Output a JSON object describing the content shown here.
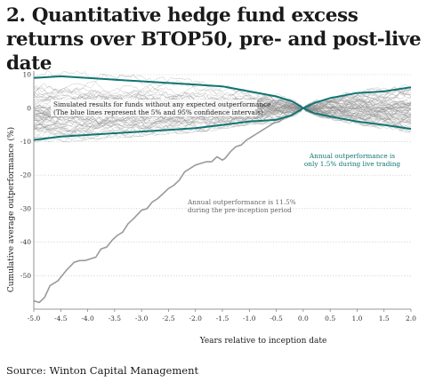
{
  "title": "2. Quantitative hedge fund excess returns over BTOP50, pre- and post-live date",
  "source": "Source: Winton Capital Management",
  "colors": {
    "teal": "#0f7573",
    "grey": "#9a9a9a",
    "sim": "#8a8a8a",
    "axis": "#777777"
  },
  "chart_data": {
    "type": "line",
    "xlabel": "Years relative to inception date",
    "ylabel": "Cumulative average outperformance (%)",
    "xlim": [
      -5.0,
      2.0
    ],
    "ylim": [
      -60,
      10
    ],
    "xticks": [
      "-5.0",
      "-4.5",
      "-4.0",
      "-3.5",
      "-3.0",
      "-2.5",
      "-2.0",
      "-1.5",
      "-1.0",
      "-0.5",
      "0.0",
      "0.5",
      "1.0",
      "1.5",
      "2.0"
    ],
    "yticks": [
      "10",
      "0",
      "-10",
      "-20",
      "-30",
      "-40",
      "-50"
    ],
    "series": [
      {
        "role": "pre-inception",
        "x": [
          -5.0,
          -4.9,
          -4.8,
          -4.7,
          -4.55,
          -4.4,
          -4.25,
          -4.15,
          -4.05,
          -3.95,
          -3.85,
          -3.75,
          -3.65,
          -3.55,
          -3.45,
          -3.35,
          -3.25,
          -3.15,
          -3.0,
          -2.9,
          -2.8,
          -2.7,
          -2.6,
          -2.5,
          -2.4,
          -2.3,
          -2.2,
          -2.1,
          -2.0,
          -1.9,
          -1.8,
          -1.7,
          -1.6,
          -1.5,
          -1.45,
          -1.35,
          -1.25,
          -1.15,
          -1.05,
          -0.95,
          -0.85,
          -0.75,
          -0.65,
          -0.55,
          -0.45,
          -0.35,
          -0.25,
          -0.15,
          -0.05,
          0.0
        ],
        "values": [
          -57.5,
          -58.0,
          -56.5,
          -53.0,
          -51.5,
          -48.5,
          -46.0,
          -45.5,
          -45.5,
          -45.0,
          -44.5,
          -42.0,
          -41.5,
          -39.5,
          -38.0,
          -37.0,
          -34.5,
          -33.0,
          -30.5,
          -30.0,
          -28.0,
          -27.0,
          -25.5,
          -24.0,
          -23.0,
          -21.5,
          -19.0,
          -18.0,
          -17.0,
          -16.5,
          -16.0,
          -16.0,
          -14.5,
          -15.5,
          -15.0,
          -13.0,
          -11.5,
          -11.0,
          -9.5,
          -8.5,
          -7.5,
          -6.5,
          -5.5,
          -4.5,
          -4.0,
          -3.0,
          -2.5,
          -1.5,
          -0.5,
          0.0
        ]
      },
      {
        "role": "upper-95",
        "x": [
          -5.0,
          -4.5,
          -4.0,
          -3.5,
          -3.0,
          -2.5,
          -2.0,
          -1.5,
          -1.0,
          -0.5,
          -0.2,
          0.0,
          0.2,
          0.5,
          1.0,
          1.5,
          2.0
        ],
        "values": [
          9.0,
          9.5,
          9.0,
          8.5,
          8.0,
          7.5,
          7.0,
          6.5,
          5.0,
          3.5,
          2.0,
          0.0,
          1.5,
          3.0,
          4.5,
          5.0,
          6.2
        ]
      },
      {
        "role": "lower-5",
        "x": [
          -5.0,
          -4.5,
          -4.0,
          -3.5,
          -3.0,
          -2.5,
          -2.0,
          -1.5,
          -1.0,
          -0.5,
          -0.2,
          0.0,
          0.2,
          0.5,
          1.0,
          1.5,
          2.0
        ],
        "values": [
          -9.5,
          -8.5,
          -8.0,
          -7.5,
          -7.0,
          -6.5,
          -6.0,
          -5.0,
          -4.0,
          -3.5,
          -2.0,
          0.0,
          -1.5,
          -2.5,
          -4.0,
          -5.0,
          -6.2
        ]
      }
    ],
    "annotations": [
      {
        "id": "sim",
        "lines": [
          "Simulated results for funds without any expected outperformance",
          "(The blue lines represent the 5% and 95% confidence intervals)"
        ]
      },
      {
        "id": "live",
        "lines": [
          "Annual outperformance is",
          "only 1.5% during live trading"
        ]
      },
      {
        "id": "pre",
        "lines": [
          "Annual outperformance is 11.5%",
          "during the pre-inception period"
        ]
      }
    ]
  }
}
